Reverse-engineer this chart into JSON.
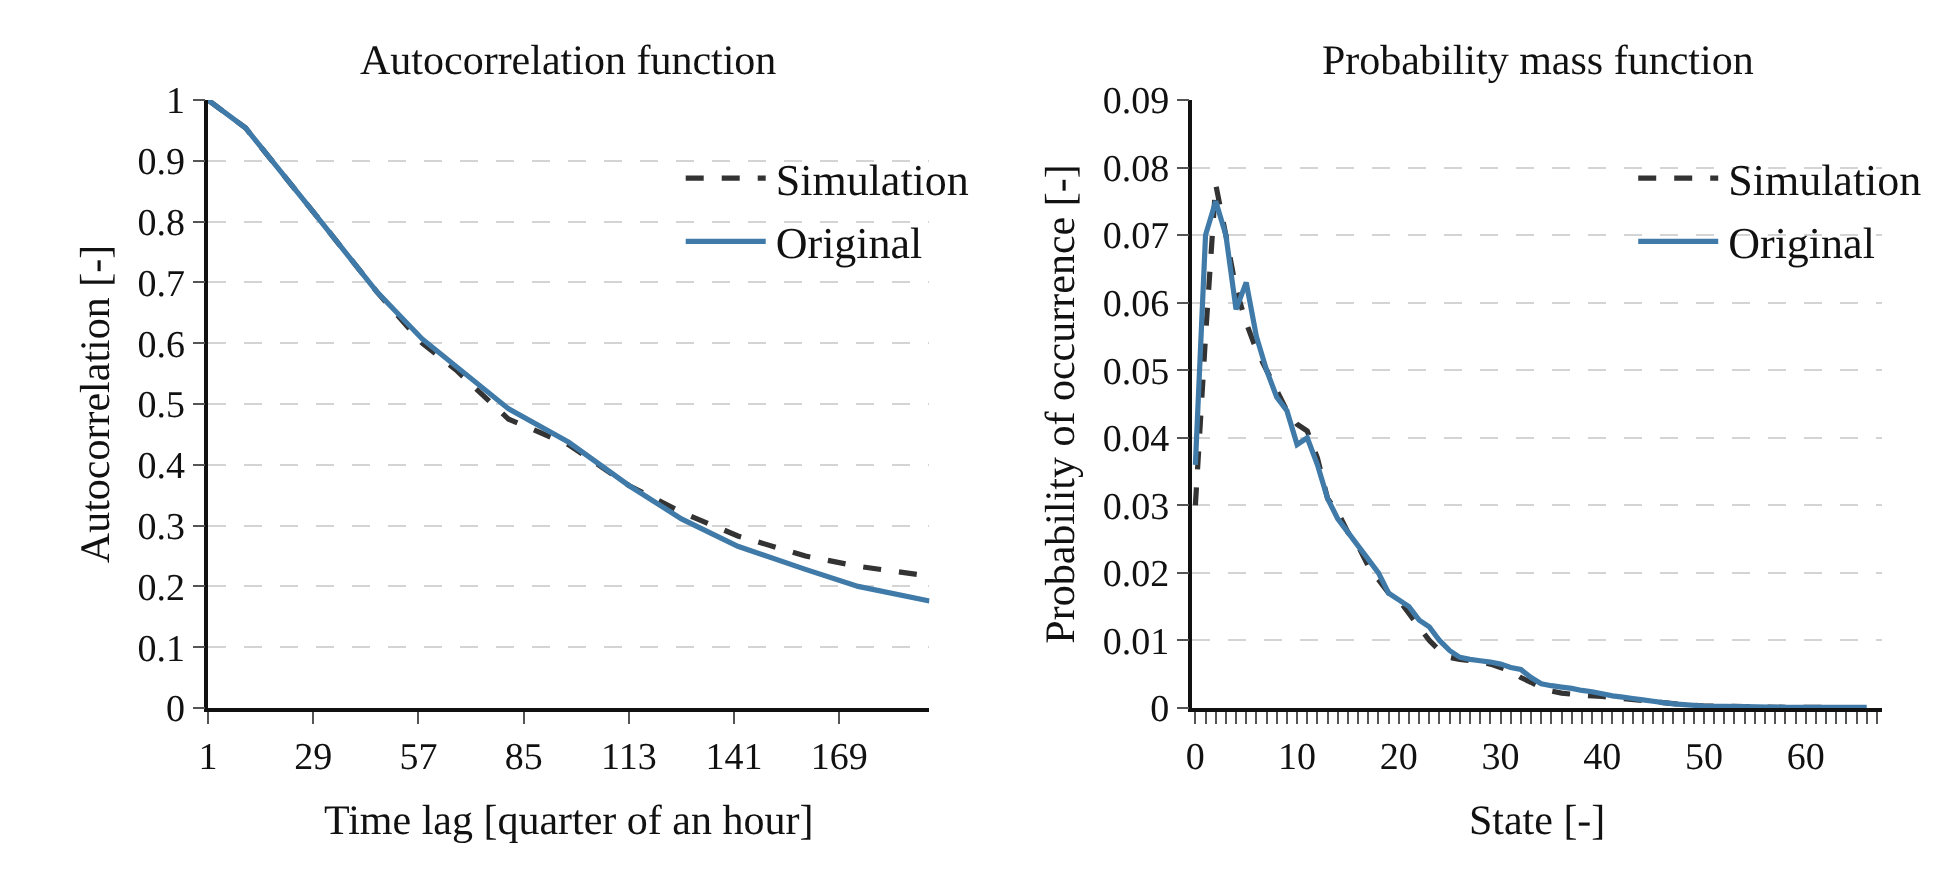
{
  "chart_data": [
    {
      "type": "line",
      "title": "Autocorrelation function",
      "xlabel": "Time lag [quarter of an hour]",
      "ylabel": "Autocorrelation [-]",
      "xlim": [
        1,
        193
      ],
      "xticks": [
        1,
        29,
        57,
        85,
        113,
        141,
        169
      ],
      "ylim": [
        0,
        1
      ],
      "yticks": [
        0,
        0.1,
        0.2,
        0.3,
        0.4,
        0.5,
        0.6,
        0.7,
        0.8,
        0.9,
        1
      ],
      "grid": "y",
      "legend": "top right",
      "series": [
        {
          "name": "Simulation",
          "color": "#333333",
          "line_style": "dashed",
          "x": [
            1,
            11,
            29,
            46,
            58,
            67,
            81,
            97,
            113,
            127,
            142,
            160,
            174,
            193
          ],
          "values": [
            1,
            0.954,
            0.816,
            0.684,
            0.6,
            0.556,
            0.475,
            0.433,
            0.366,
            0.322,
            0.283,
            0.25,
            0.233,
            0.217
          ]
        },
        {
          "name": "Original",
          "color": "#3f7aa8",
          "line_style": "solid",
          "x": [
            1,
            11,
            29,
            46,
            58,
            81,
            97,
            113,
            127,
            142,
            160,
            174,
            193
          ],
          "values": [
            1,
            0.954,
            0.816,
            0.684,
            0.607,
            0.492,
            0.437,
            0.366,
            0.311,
            0.266,
            0.228,
            0.2,
            0.176
          ]
        }
      ]
    },
    {
      "type": "line",
      "title": "Probability mass function",
      "xlabel": "State [-]",
      "ylabel": "Probability of occurrence [-]",
      "xlim": [
        -0.3,
        67.5
      ],
      "xticks": [
        0,
        {
          "value": 1,
          "label": null
        },
        {
          "value": 2,
          "label": null
        },
        {
          "value": 3,
          "label": null
        },
        {
          "value": 4,
          "label": null
        },
        {
          "value": 5,
          "label": null
        },
        {
          "value": 6,
          "label": null
        },
        {
          "value": 7,
          "label": null
        },
        {
          "value": 8,
          "label": null
        },
        {
          "value": 9,
          "label": null
        },
        10,
        {
          "value": 11,
          "label": null
        },
        {
          "value": 12,
          "label": null
        },
        {
          "value": 13,
          "label": null
        },
        {
          "value": 14,
          "label": null
        },
        {
          "value": 15,
          "label": null
        },
        {
          "value": 16,
          "label": null
        },
        {
          "value": 17,
          "label": null
        },
        {
          "value": 18,
          "label": null
        },
        {
          "value": 19,
          "label": null
        },
        20,
        {
          "value": 21,
          "label": null
        },
        {
          "value": 22,
          "label": null
        },
        {
          "value": 23,
          "label": null
        },
        {
          "value": 24,
          "label": null
        },
        {
          "value": 25,
          "label": null
        },
        {
          "value": 26,
          "label": null
        },
        {
          "value": 27,
          "label": null
        },
        {
          "value": 28,
          "label": null
        },
        {
          "value": 29,
          "label": null
        },
        30,
        {
          "value": 31,
          "label": null
        },
        {
          "value": 32,
          "label": null
        },
        {
          "value": 33,
          "label": null
        },
        {
          "value": 34,
          "label": null
        },
        {
          "value": 35,
          "label": null
        },
        {
          "value": 36,
          "label": null
        },
        {
          "value": 37,
          "label": null
        },
        {
          "value": 38,
          "label": null
        },
        {
          "value": 39,
          "label": null
        },
        40,
        {
          "value": 41,
          "label": null
        },
        {
          "value": 42,
          "label": null
        },
        {
          "value": 43,
          "label": null
        },
        {
          "value": 44,
          "label": null
        },
        {
          "value": 45,
          "label": null
        },
        {
          "value": 46,
          "label": null
        },
        {
          "value": 47,
          "label": null
        },
        {
          "value": 48,
          "label": null
        },
        {
          "value": 49,
          "label": null
        },
        50,
        {
          "value": 51,
          "label": null
        },
        {
          "value": 52,
          "label": null
        },
        {
          "value": 53,
          "label": null
        },
        {
          "value": 54,
          "label": null
        },
        {
          "value": 55,
          "label": null
        },
        {
          "value": 56,
          "label": null
        },
        {
          "value": 57,
          "label": null
        },
        {
          "value": 58,
          "label": null
        },
        {
          "value": 59,
          "label": null
        },
        60,
        {
          "value": 61,
          "label": null
        },
        {
          "value": 62,
          "label": null
        },
        {
          "value": 63,
          "label": null
        },
        {
          "value": 64,
          "label": null
        },
        {
          "value": 65,
          "label": null
        },
        {
          "value": 66,
          "label": null
        },
        {
          "value": 67,
          "label": null
        }
      ],
      "ylim": [
        0,
        0.09
      ],
      "yticks": [
        0,
        0.01,
        0.02,
        0.03,
        0.04,
        0.05,
        0.06,
        0.07,
        0.08,
        0.09
      ],
      "grid": "y",
      "legend": "top right",
      "series": [
        {
          "name": "Simulation",
          "color": "#333333",
          "line_style": "dashed",
          "x": [
            0,
            1,
            2,
            3,
            4,
            5,
            6,
            7,
            8,
            9,
            10,
            11,
            12,
            13,
            14,
            15,
            16,
            17,
            18,
            19,
            20,
            21,
            22,
            23,
            24,
            25,
            26,
            27,
            28,
            29,
            30,
            31,
            32,
            33,
            34,
            35,
            36,
            38,
            40,
            42,
            44,
            46,
            48,
            50,
            54,
            58,
            62,
            66
          ],
          "values": [
            0.03,
            0.055,
            0.0775,
            0.07,
            0.062,
            0.057,
            0.053,
            0.05,
            0.047,
            0.044,
            0.042,
            0.041,
            0.037,
            0.031,
            0.029,
            0.026,
            0.024,
            0.021,
            0.019,
            0.017,
            0.016,
            0.014,
            0.012,
            0.01,
            0.0085,
            0.0075,
            0.0072,
            0.007,
            0.0068,
            0.0065,
            0.006,
            0.0055,
            0.0045,
            0.0038,
            0.003,
            0.0025,
            0.0022,
            0.0019,
            0.0017,
            0.0014,
            0.0011,
            0.0008,
            0.0005,
            0.0003,
            0.0002,
            0.0001,
            0.0001,
            0
          ]
        },
        {
          "name": "Original",
          "color": "#3f7aa8",
          "line_style": "solid",
          "x": [
            0,
            1,
            2,
            3,
            4,
            5,
            6,
            7,
            8,
            9,
            10,
            11,
            12,
            13,
            14,
            15,
            16,
            17,
            18,
            19,
            20,
            21,
            22,
            23,
            24,
            25,
            26,
            27,
            28,
            29,
            30,
            31,
            32,
            33,
            34,
            35,
            36,
            37,
            38,
            39,
            40,
            41,
            42,
            43,
            44,
            45,
            46,
            47,
            50,
            54,
            58,
            62,
            66
          ],
          "values": [
            0.036,
            0.07,
            0.075,
            0.07,
            0.059,
            0.063,
            0.055,
            0.05,
            0.046,
            0.044,
            0.039,
            0.04,
            0.036,
            0.031,
            0.028,
            0.026,
            0.024,
            0.022,
            0.02,
            0.017,
            0.016,
            0.015,
            0.013,
            0.012,
            0.01,
            0.0085,
            0.0075,
            0.0072,
            0.007,
            0.0068,
            0.0065,
            0.006,
            0.0057,
            0.0045,
            0.0036,
            0.0033,
            0.0031,
            0.0029,
            0.0026,
            0.0024,
            0.0021,
            0.0018,
            0.0016,
            0.0014,
            0.0012,
            0.001,
            0.0008,
            0.0006,
            0.0003,
            0.0002,
            0.0001,
            0.0001,
            0.0001
          ]
        }
      ]
    }
  ]
}
